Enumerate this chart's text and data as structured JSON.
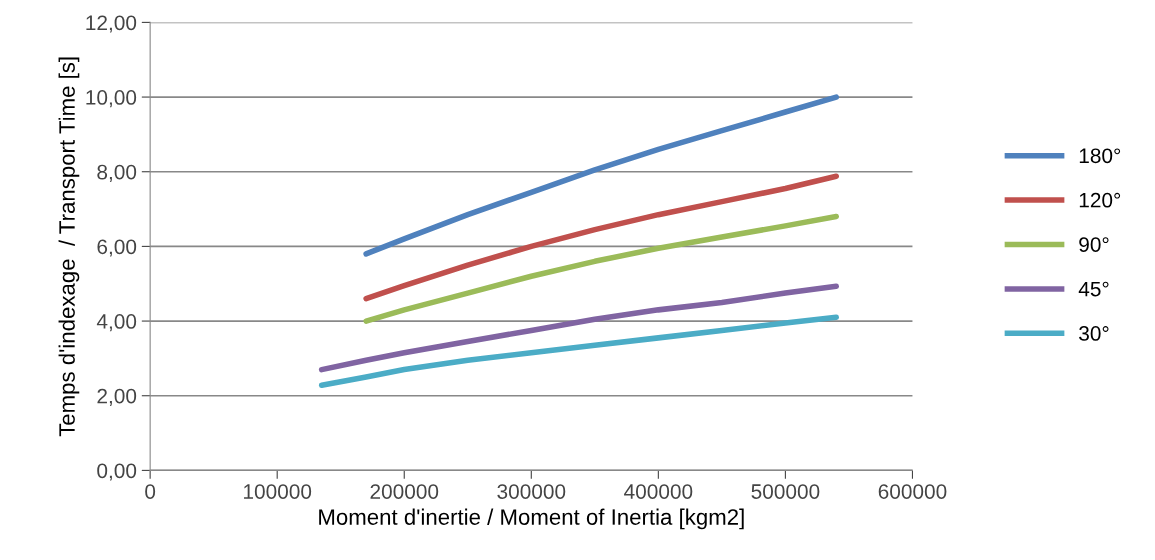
{
  "chart_data": {
    "type": "line",
    "xlabel": "Moment d'inertie / Moment of Inertia [kgm2]",
    "ylabel": "Temps d'indexage  / Transport Time [s]",
    "xlim": [
      0,
      600000
    ],
    "xticks": [
      0,
      100000,
      200000,
      300000,
      400000,
      500000,
      600000
    ],
    "ylim": [
      0,
      12
    ],
    "yticks": [
      {
        "value": 0,
        "label": "0,00"
      },
      {
        "value": 2,
        "label": "2,00"
      },
      {
        "value": 4,
        "label": "4,00"
      },
      {
        "value": 6,
        "label": "6,00"
      },
      {
        "value": 8,
        "label": "8,00"
      },
      {
        "value": 10,
        "label": "10,00"
      },
      {
        "value": 12,
        "label": "12,00"
      }
    ],
    "grid": "y",
    "legend": "right",
    "marker": "none",
    "line_style": "solid",
    "series": [
      {
        "name": "180°",
        "color": "#4f81bd",
        "x": [
          170000,
          200000,
          250000,
          300000,
          350000,
          400000,
          450000,
          500000,
          540000
        ],
        "values": [
          5.8,
          6.2,
          6.85,
          7.45,
          8.05,
          8.6,
          9.1,
          9.6,
          10.0
        ]
      },
      {
        "name": "120°",
        "color": "#c0504d",
        "x": [
          170000,
          200000,
          250000,
          300000,
          350000,
          400000,
          450000,
          500000,
          540000
        ],
        "values": [
          4.6,
          4.95,
          5.5,
          6.0,
          6.45,
          6.85,
          7.2,
          7.55,
          7.88
        ]
      },
      {
        "name": "90°",
        "color": "#9bbb59",
        "x": [
          170000,
          200000,
          250000,
          300000,
          350000,
          400000,
          450000,
          500000,
          540000
        ],
        "values": [
          4.0,
          4.3,
          4.75,
          5.2,
          5.6,
          5.95,
          6.25,
          6.55,
          6.8
        ]
      },
      {
        "name": "45°",
        "color": "#8064a2",
        "x": [
          135000,
          170000,
          200000,
          250000,
          300000,
          350000,
          400000,
          450000,
          500000,
          540000
        ],
        "values": [
          2.7,
          2.95,
          3.15,
          3.45,
          3.75,
          4.05,
          4.3,
          4.5,
          4.75,
          4.93
        ]
      },
      {
        "name": "30°",
        "color": "#4bacc6",
        "x": [
          135000,
          170000,
          200000,
          250000,
          300000,
          350000,
          400000,
          450000,
          500000,
          540000
        ],
        "values": [
          2.28,
          2.5,
          2.7,
          2.95,
          3.15,
          3.35,
          3.55,
          3.75,
          3.95,
          4.1
        ]
      }
    ]
  }
}
